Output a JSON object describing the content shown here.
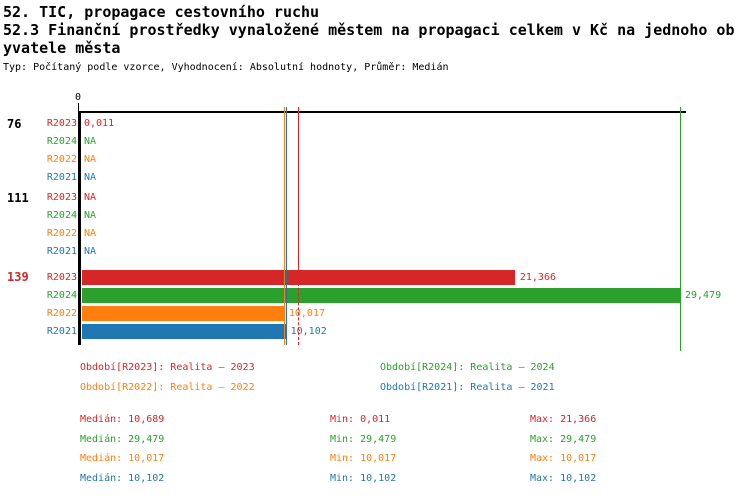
{
  "header": {
    "title_lines": [
      "52. TIC, propagace cestovního ruchu",
      "52.3 Finanční prostředky vynaložené městem na propagaci celkem v Kč na jednoho ob",
      "yvatele města"
    ],
    "meta": "Typ: Počítaný podle vzorce, Vyhodnocení: Absolutní hodnoty, Průměr: Medián"
  },
  "colors": {
    "R2023": "#d62728",
    "R2024": "#2ca02c",
    "R2022": "#ff7f0e",
    "R2021": "#1f77b4",
    "axis": "#000000",
    "highlight_group": "#d62728"
  },
  "chart_data": {
    "type": "bar",
    "orientation": "horizontal",
    "title": "52.3 Finanční prostředky vynaložené městem na propagaci celkem v Kč na jednoho obyvatele města",
    "x_axis": {
      "zero_label": "0",
      "min": 0,
      "max": 29.479
    },
    "series_order": [
      "R2023",
      "R2024",
      "R2022",
      "R2021"
    ],
    "groups": [
      {
        "label": "76",
        "highlight": false,
        "rows": [
          {
            "series": "R2023",
            "display": "0,011",
            "value": 0.011
          },
          {
            "series": "R2024",
            "display": "NA",
            "value": null
          },
          {
            "series": "R2022",
            "display": "NA",
            "value": null
          },
          {
            "series": "R2021",
            "display": "NA",
            "value": null
          }
        ]
      },
      {
        "label": "111",
        "highlight": false,
        "rows": [
          {
            "series": "R2023",
            "display": "NA",
            "value": null
          },
          {
            "series": "R2024",
            "display": "NA",
            "value": null
          },
          {
            "series": "R2022",
            "display": "NA",
            "value": null
          },
          {
            "series": "R2021",
            "display": "NA",
            "value": null
          }
        ]
      },
      {
        "label": "139",
        "highlight": true,
        "rows": [
          {
            "series": "R2023",
            "display": "21,366",
            "value": 21.366
          },
          {
            "series": "R2024",
            "display": "29,479",
            "value": 29.479
          },
          {
            "series": "R2022",
            "display": "10,017",
            "value": 10.017
          },
          {
            "series": "R2021",
            "display": "10,102",
            "value": 10.102
          }
        ]
      }
    ],
    "guide_lines": [
      {
        "series": "R2023",
        "value": 10.689,
        "style": "solid-then-dashed"
      },
      {
        "series": "R2024",
        "value": 29.479,
        "style": "solid"
      },
      {
        "series": "R2022",
        "value": 10.017,
        "style": "solid"
      },
      {
        "series": "R2021",
        "value": 10.102,
        "style": "solid"
      }
    ]
  },
  "legend": {
    "items": [
      {
        "series": "R2023",
        "label": "Období[R2023]: Realita – 2023"
      },
      {
        "series": "R2024",
        "label": "Období[R2024]: Realita – 2024"
      },
      {
        "series": "R2022",
        "label": "Období[R2022]: Realita – 2022"
      },
      {
        "series": "R2021",
        "label": "Období[R2021]: Realita – 2021"
      }
    ]
  },
  "stats": {
    "median_label": "Medián:",
    "min_label": "Min:",
    "max_label": "Max:",
    "rows": [
      {
        "series": "R2023",
        "median": "10,689",
        "min": "0,011",
        "max": "21,366"
      },
      {
        "series": "R2024",
        "median": "29,479",
        "min": "29,479",
        "max": "29,479"
      },
      {
        "series": "R2022",
        "median": "10,017",
        "min": "10,017",
        "max": "10,017"
      },
      {
        "series": "R2021",
        "median": "10,102",
        "min": "10,102",
        "max": "10,102"
      }
    ]
  }
}
